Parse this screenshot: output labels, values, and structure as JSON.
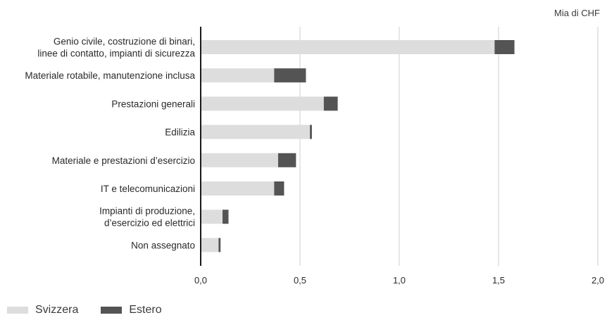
{
  "chart_data": {
    "type": "bar",
    "orientation": "horizontal",
    "stacked": true,
    "unit": "Mia di CHF",
    "categories": [
      [
        "Genio civile, costruzione di binari,",
        "linee di contatto, impianti di sicurezza"
      ],
      [
        "Materiale rotabile, manutenzione inclusa"
      ],
      [
        "Prestazioni generali"
      ],
      [
        "Edilizia"
      ],
      [
        "Materiale e prestazioni d’esercizio"
      ],
      [
        "IT e telecomunicazioni"
      ],
      [
        "Impianti di produzione,",
        "d’esercizio ed elettrici"
      ],
      [
        "Non assegnato"
      ]
    ],
    "series": [
      {
        "name": "Svizzera",
        "color": "#dddddd",
        "values": [
          1.48,
          0.37,
          0.62,
          0.55,
          0.39,
          0.37,
          0.11,
          0.09
        ]
      },
      {
        "name": "Estero",
        "color": "#545454",
        "values": [
          0.1,
          0.16,
          0.07,
          0.01,
          0.09,
          0.05,
          0.03,
          0.01
        ]
      }
    ],
    "xlim": [
      0,
      2.0
    ],
    "xticks": [
      "0,0",
      "0,5",
      "1,0",
      "1,5",
      "2,0"
    ],
    "grid": true,
    "legend_position": "bottom-left"
  }
}
